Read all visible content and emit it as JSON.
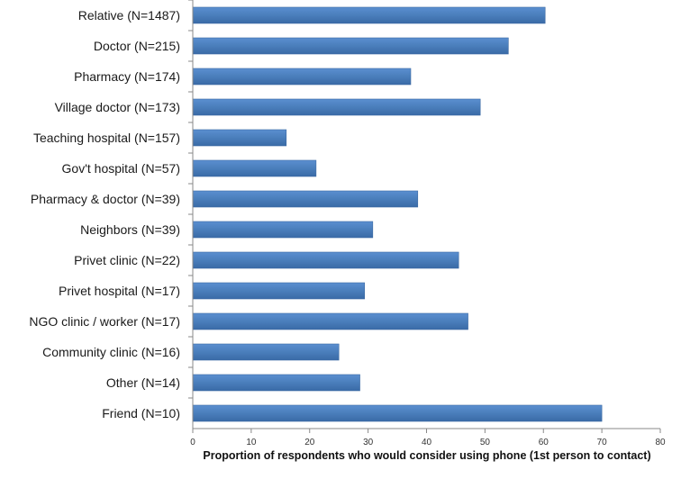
{
  "chart_data": {
    "type": "bar",
    "orientation": "horizontal",
    "categories": [
      "Relative (N=1487)",
      "Doctor (N=215)",
      "Pharmacy (N=174)",
      "Village doctor (N=173)",
      "Teaching hospital (N=157)",
      "Gov't hospital (N=57)",
      "Pharmacy & doctor (N=39)",
      "Neighbors (N=39)",
      "Privet clinic (N=22)",
      "Privet hospital (N=17)",
      "NGO clinic / worker (N=17)",
      "Community clinic (N=16)",
      "Other (N=14)",
      "Friend (N=10)"
    ],
    "values": [
      60.3,
      54,
      37.3,
      49.2,
      16,
      21.1,
      38.5,
      30.8,
      45.5,
      29.4,
      47.1,
      25,
      28.6,
      70
    ],
    "xticks": [
      "0",
      "10",
      "20",
      "30",
      "40",
      "50",
      "60",
      "70",
      "80"
    ],
    "xlim": [
      0,
      80
    ],
    "xlabel": "Proportion of respondents who would consider using phone (1st person to contact)",
    "ylabel": "",
    "title": "",
    "grid": false,
    "legend": "none",
    "colors": {
      "bar": "#4a7ebb",
      "bar_edge": "#3c6aa3",
      "axis": "#888888"
    }
  }
}
